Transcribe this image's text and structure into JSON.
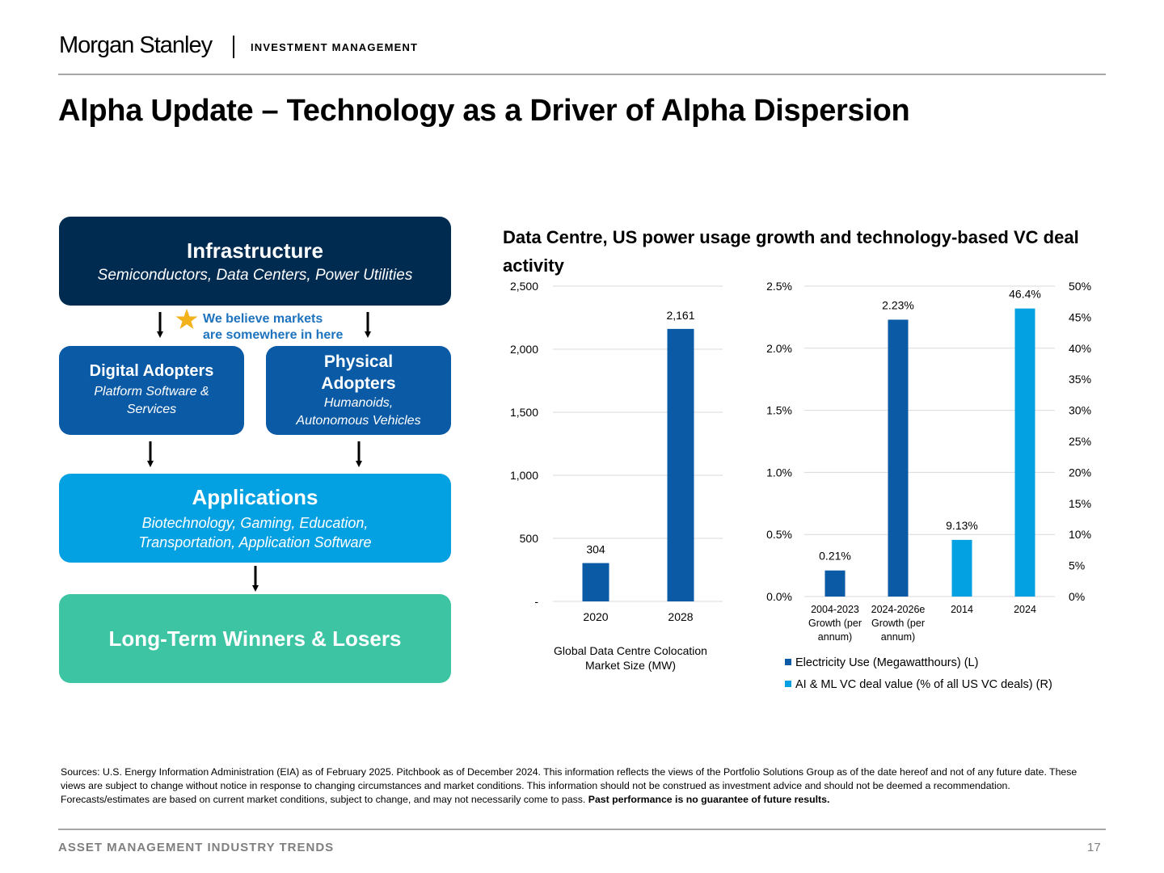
{
  "header": {
    "brand": "Morgan Stanley",
    "division": "INVESTMENT MANAGEMENT"
  },
  "title": "Alpha Update – Technology as a Driver of Alpha Dispersion",
  "diagram": {
    "infrastructure": {
      "title": "Infrastructure",
      "subtitle": "Semiconductors, Data Centers, Power Utilities",
      "color": "#002b51"
    },
    "note_line1": "We believe markets",
    "note_line2": "are somewhere in here",
    "digital": {
      "title": "Digital Adopters",
      "subtitle_line1": "Platform Software &",
      "subtitle_line2": "Services",
      "color": "#0a5aa5"
    },
    "physical": {
      "title_line1": "Physical",
      "title_line2": "Adopters",
      "subtitle_line1": "Humanoids,",
      "subtitle_line2": "Autonomous Vehicles",
      "color": "#0a5aa5"
    },
    "applications": {
      "title": "Applications",
      "subtitle_line1": "Biotechnology, Gaming, Education,",
      "subtitle_line2": "Transportation, Application Software",
      "color": "#04a1e2"
    },
    "winners": {
      "title": "Long-Term Winners & Losers",
      "color": "#3cc4a3"
    }
  },
  "chart_section_title": "Data Centre, US power usage growth and technology-based VC deal activity",
  "chart_data": [
    {
      "type": "bar",
      "categories": [
        "2020",
        "2028"
      ],
      "values": [
        304,
        2161
      ],
      "data_labels": [
        "304",
        "2,161"
      ],
      "title": "",
      "xlabel_line1": "Global Data Centre Colocation",
      "xlabel_line2": "Market Size (MW)",
      "ylabel": "",
      "ylim": [
        0,
        2500
      ],
      "yticks": [
        "-",
        "500",
        "1,000",
        "1,500",
        "2,000",
        "2,500"
      ],
      "grid": true,
      "color": "#0a5aa5"
    },
    {
      "type": "bar",
      "categories_lines": [
        [
          "2004-2023",
          "Growth (per",
          "annum)"
        ],
        [
          "2024-2026e",
          "Growth (per",
          "annum)"
        ],
        [
          "2014"
        ],
        [
          "2024"
        ]
      ],
      "series": [
        {
          "name": "Electricity Use (Megawatthours) (L)",
          "axis": "left",
          "values": [
            0.21,
            2.23,
            null,
            null
          ],
          "labels": [
            "0.21%",
            "2.23%",
            "",
            ""
          ],
          "color": "#0a5aa5"
        },
        {
          "name": "AI & ML VC deal value (% of all US VC deals) (R)",
          "axis": "right",
          "values": [
            null,
            null,
            9.13,
            46.4
          ],
          "labels": [
            "",
            "",
            "9.13%",
            "46.4%"
          ],
          "color": "#04a1e2"
        }
      ],
      "ylim_left": [
        0,
        2.5
      ],
      "yticks_left": [
        "0.0%",
        "0.5%",
        "1.0%",
        "1.5%",
        "2.0%",
        "2.5%"
      ],
      "ylim_right": [
        0,
        50
      ],
      "yticks_right": [
        "0%",
        "5%",
        "10%",
        "15%",
        "20%",
        "25%",
        "30%",
        "35%",
        "40%",
        "45%",
        "50%"
      ],
      "grid": true,
      "legend_position": "bottom"
    }
  ],
  "sources_text": "Sources: U.S. Energy Information Administration (EIA) as of February 2025. Pitchbook as of December 2024. This information reflects the views of the Portfolio Solutions Group as of the date hereof and not of any future date. These views are subject to change without notice in response to changing circumstances and market conditions. This information should not be construed as investment advice and should not be deemed a recommendation. Forecasts/estimates are based on current market conditions, subject to change, and may not necessarily come to pass. ",
  "sources_bold": "Past performance is no guarantee of future results.",
  "footer": {
    "section": "ASSET MANAGEMENT INDUSTRY TRENDS",
    "page": "17"
  }
}
